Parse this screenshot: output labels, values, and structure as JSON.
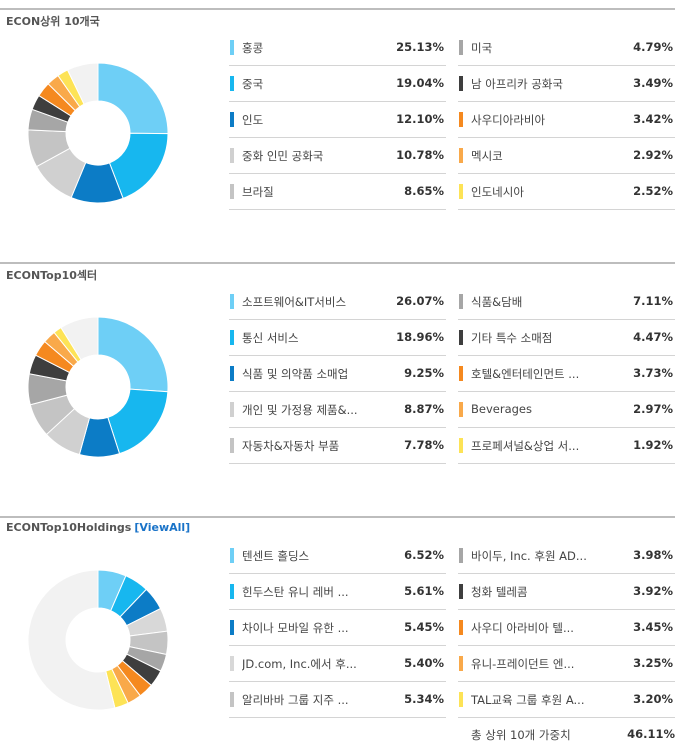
{
  "sections": [
    {
      "title": "ECON상위 10개국",
      "chart_data": {
        "type": "pie",
        "categories": [
          "홍콩",
          "중국",
          "인도",
          "중화 인민 공화국",
          "브라질",
          "미국",
          "남 아프리카 공화국",
          "사우디아라비아",
          "멕시코",
          "인도네시아"
        ],
        "values": [
          25.13,
          19.04,
          12.1,
          10.78,
          8.65,
          4.79,
          3.49,
          3.42,
          2.92,
          2.52
        ],
        "value_labels": [
          "25.13%",
          "19.04%",
          "12.10%",
          "10.78%",
          "8.65%",
          "4.79%",
          "3.49%",
          "3.42%",
          "2.92%",
          "2.52%"
        ],
        "colors": [
          "#6ecff6",
          "#17b7ef",
          "#0c7cc6",
          "#d0d0d0",
          "#c4c4c4",
          "#a6a6a6",
          "#3e3e3e",
          "#f5891f",
          "#f9a94a",
          "#fde356"
        ],
        "remainder_color": "#f2f2f2"
      }
    },
    {
      "title": "ECONTop10섹터",
      "chart_data": {
        "type": "pie",
        "categories": [
          "소프트웨어&IT서비스",
          "통신 서비스",
          "식품 및 의약품 소매업",
          "개인 및 가정용 제품&...",
          "자동차&자동차 부품",
          "식품&담배",
          "기타 특수 소매점",
          "호텔&엔터테인먼트 ...",
          "Beverages",
          "프로페셔널&상업 서..."
        ],
        "values": [
          26.07,
          18.96,
          9.25,
          8.87,
          7.78,
          7.11,
          4.47,
          3.73,
          2.97,
          1.92
        ],
        "value_labels": [
          "26.07%",
          "18.96%",
          "9.25%",
          "8.87%",
          "7.78%",
          "7.11%",
          "4.47%",
          "3.73%",
          "2.97%",
          "1.92%"
        ],
        "colors": [
          "#6ecff6",
          "#17b7ef",
          "#0c7cc6",
          "#d0d0d0",
          "#c4c4c4",
          "#a6a6a6",
          "#3e3e3e",
          "#f5891f",
          "#f9a94a",
          "#fde356"
        ],
        "remainder_color": "#f2f2f2"
      }
    },
    {
      "title": "ECONTop10Holdings",
      "view_all": "[ViewAll]",
      "chart_data": {
        "type": "pie",
        "categories": [
          "텐센트 홀딩스",
          "힌두스탄 유니 레버 ...",
          "차이나 모바일 유한 ...",
          "JD.com, Inc.에서 후...",
          "알리바바 그룹 지주 ...",
          "바이두, Inc. 후원 AD...",
          "청화 텔레콤",
          "사우디 아라비아 텔...",
          "유니-프레이던트 엔...",
          "TAL교육 그룹 후원 A..."
        ],
        "values": [
          6.52,
          5.61,
          5.45,
          5.4,
          5.34,
          3.98,
          3.92,
          3.45,
          3.25,
          3.2
        ],
        "value_labels": [
          "6.52%",
          "5.61%",
          "5.45%",
          "5.40%",
          "5.34%",
          "3.98%",
          "3.92%",
          "3.45%",
          "3.25%",
          "3.20%"
        ],
        "colors": [
          "#6ecff6",
          "#17b7ef",
          "#0c7cc6",
          "#d8d8d8",
          "#c4c4c4",
          "#a6a6a6",
          "#3e3e3e",
          "#f5891f",
          "#f9a94a",
          "#fde356"
        ],
        "remainder_color": "#f2f2f2",
        "total_label": "총 상위 10개 가중치",
        "total_value": "46.11%"
      }
    }
  ]
}
